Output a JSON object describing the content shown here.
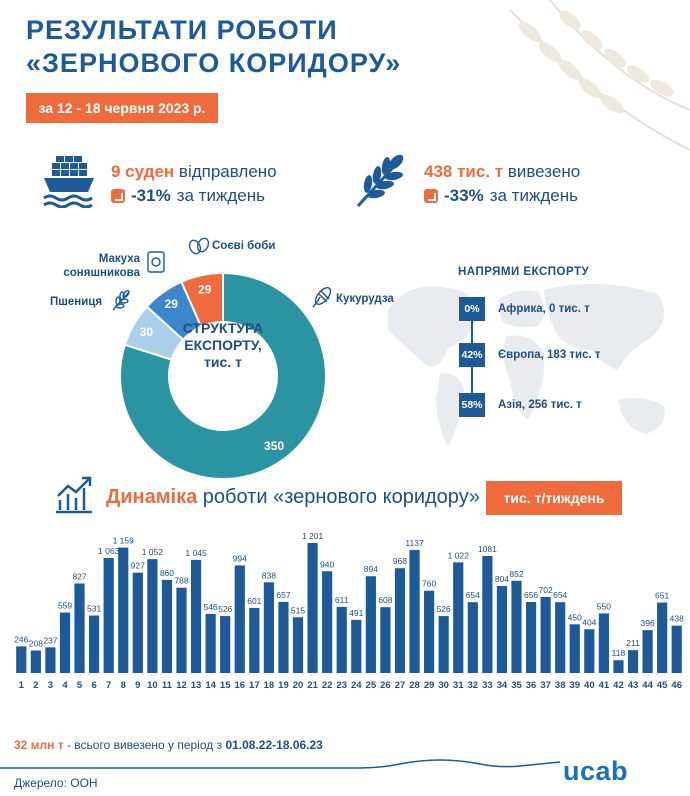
{
  "title": {
    "line1": "РЕЗУЛЬТАТИ РОБОТИ",
    "line2": "«ЗЕРНОВОГО КОРИДОРУ»"
  },
  "period": "за 12 - 18 червня 2023 р.",
  "stats": {
    "ships": {
      "value": "9 суден",
      "suffix": " відправлено",
      "delta": "-31%",
      "delta_suffix": " за тиждень"
    },
    "tonnage": {
      "value": "438 тис. т",
      "suffix": " вивезено",
      "delta": "-33%",
      "delta_suffix": " за тиждень"
    }
  },
  "structure": {
    "center_label": "СТРУКТУРА ЕКСПОРТУ, тис. т",
    "center_line1": "СТРУКТУРА",
    "center_line2": "ЕКСПОРТУ,",
    "center_line3": "тис. т",
    "labels": {
      "soy": "Соєві боби",
      "sunflower_line1": "Макуха",
      "sunflower_line2": "соняшникова",
      "wheat": "Пшениця",
      "corn": "Кукурудза"
    }
  },
  "directions": {
    "title": "НАПРЯМИ ЕКСПОРТУ",
    "items": [
      {
        "pct": "0%",
        "label": "Африка, 0 тис. т"
      },
      {
        "pct": "42%",
        "label": "Європа, 183 тис. т"
      },
      {
        "pct": "58%",
        "label": "Азія, 256 тис. т"
      }
    ]
  },
  "dynamics": {
    "title_highlight": "Динаміка",
    "title_rest": " роботи «зернового коридору»",
    "unit": "тис. т/тиждень"
  },
  "summary": {
    "highlight": "32 млн т",
    "middle": " - всього вивезено у період з ",
    "dates": "01.08.22-18.06.23"
  },
  "source": "Джерело: ООН",
  "logo": "ucab",
  "colors": {
    "primary_blue": "#1e5a98",
    "accent_orange": "#ef6b3e",
    "teal": "#2a94a3"
  },
  "chart_data": [
    {
      "type": "pie",
      "categories": [
        "Кукурудза",
        "Пшениця",
        "Макуха соняшникова",
        "Соєві боби"
      ],
      "values": [
        350,
        30,
        29,
        29
      ],
      "colors": [
        "#2a94a3",
        "#a9cfea",
        "#3b86cc",
        "#ef6b3e"
      ],
      "title": "СТРУКТУРА ЕКСПОРТУ, тис. т"
    },
    {
      "type": "bar",
      "categories": [
        "1",
        "2",
        "3",
        "4",
        "5",
        "6",
        "7",
        "8",
        "9",
        "10",
        "11",
        "12",
        "13",
        "14",
        "15",
        "16",
        "17",
        "18",
        "19",
        "20",
        "21",
        "22",
        "23",
        "24",
        "25",
        "26",
        "27",
        "28",
        "29",
        "30",
        "31",
        "32",
        "33",
        "34",
        "35",
        "36",
        "37",
        "38",
        "39",
        "40",
        "41",
        "42",
        "43",
        "44",
        "45",
        "46"
      ],
      "values": [
        246,
        208,
        237,
        559,
        827,
        531,
        1063,
        1159,
        927,
        1052,
        860,
        788,
        1045,
        546,
        526,
        994,
        601,
        838,
        657,
        515,
        1201,
        940,
        611,
        491,
        894,
        608,
        968,
        1137,
        760,
        526,
        1022,
        654,
        1081,
        804,
        852,
        656,
        702,
        654,
        450,
        404,
        550,
        118,
        211,
        396,
        651,
        438
      ],
      "value_labels": [
        "246",
        "208",
        "237",
        "559",
        "827",
        "531",
        "1 063",
        "1 159",
        "927",
        "1 052",
        "860",
        "788",
        "1 045",
        "546",
        "526",
        "994",
        "601",
        "838",
        "657",
        "515",
        "1 201",
        "940",
        "611",
        "491",
        "894",
        "608",
        "968",
        "1137",
        "760",
        "526",
        "1 022",
        "654",
        "1081",
        "804",
        "852",
        "656",
        "702",
        "654",
        "450",
        "404",
        "550",
        "118",
        "211",
        "396",
        "651",
        "438"
      ],
      "title": "Динаміка роботи «зернового коридору»",
      "ylabel": "тис. т/тиждень",
      "color": "#1e5a98"
    }
  ]
}
